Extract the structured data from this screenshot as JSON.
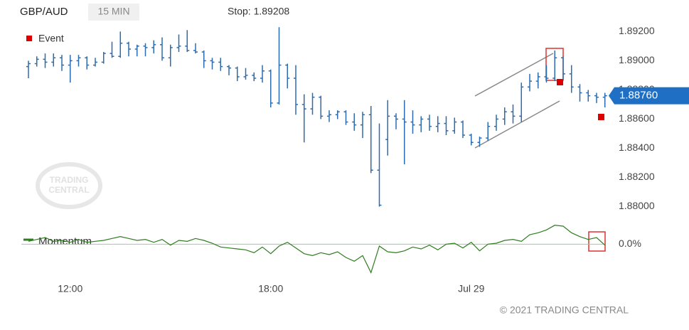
{
  "header": {
    "symbol": "GBP/AUD",
    "interval": "15 MIN",
    "stop": "Stop: 1.89208"
  },
  "watermark": [
    "TRADING",
    "CENTRAL"
  ],
  "footer": "© 2021 TRADING CENTRAL",
  "chart_data": [
    {
      "type": "ohlc",
      "legend": "Event",
      "color": "#2b6cb0",
      "categories": [
        null,
        null,
        null,
        null,
        null,
        "12:00",
        null,
        null,
        null,
        null,
        null,
        null,
        null,
        null,
        null,
        null,
        null,
        null,
        null,
        null,
        null,
        null,
        null,
        null,
        null,
        null,
        null,
        null,
        null,
        "18:00",
        null,
        null,
        null,
        null,
        null,
        null,
        null,
        null,
        null,
        null,
        null,
        null,
        null,
        null,
        null,
        null,
        null,
        null,
        null,
        null,
        null,
        null,
        null,
        "Jul 29",
        null,
        null,
        null,
        null,
        null,
        null,
        null,
        null,
        null,
        null,
        null,
        null,
        null,
        null,
        null,
        null
      ],
      "open": [
        1.8896,
        1.8898,
        1.8901,
        1.8899,
        1.8902,
        1.8897,
        1.89,
        1.8902,
        1.8897,
        1.8899,
        1.8905,
        1.8903,
        1.8912,
        1.8908,
        1.891,
        1.8909,
        1.8911,
        1.8902,
        1.8909,
        1.891,
        1.8907,
        1.8906,
        1.89,
        1.8899,
        1.8896,
        1.8895,
        1.8889,
        1.889,
        1.8888,
        1.8893,
        1.8871,
        1.8897,
        1.8888,
        1.887,
        1.8867,
        1.8875,
        1.8862,
        1.8863,
        1.8865,
        1.8858,
        1.8856,
        1.8863,
        1.8825,
        1.8846,
        1.8862,
        1.886,
        1.8858,
        1.8856,
        1.886,
        1.8855,
        1.8857,
        1.8852,
        1.8858,
        1.8849,
        1.8844,
        1.8847,
        1.8855,
        1.886,
        1.8865,
        1.8862,
        1.8882,
        1.8886,
        1.8889,
        1.8888,
        1.8902,
        1.8891,
        1.8882,
        1.8878,
        1.8876,
        1.8875
      ],
      "high": [
        1.89,
        1.8903,
        1.8905,
        1.8905,
        1.8904,
        1.8904,
        1.8904,
        1.8903,
        1.8902,
        1.8906,
        1.8913,
        1.892,
        1.8913,
        1.8911,
        1.8912,
        1.8914,
        1.8916,
        1.8911,
        1.8918,
        1.8921,
        1.8912,
        1.8907,
        1.8902,
        1.8902,
        1.8897,
        1.8896,
        1.8895,
        1.8892,
        1.8897,
        1.8894,
        1.8923,
        1.8898,
        1.8897,
        1.8877,
        1.8878,
        1.8876,
        1.8866,
        1.8866,
        1.8866,
        1.8864,
        1.8865,
        1.8869,
        1.8857,
        1.8873,
        1.8864,
        1.8873,
        1.8866,
        1.8862,
        1.8863,
        1.8862,
        1.8862,
        1.8861,
        1.8859,
        1.885,
        1.8848,
        1.8858,
        1.8863,
        1.8868,
        1.887,
        1.8885,
        1.8891,
        1.8892,
        1.8897,
        1.8907,
        1.8903,
        1.8897,
        1.8884,
        1.888,
        1.8878,
        1.8878
      ],
      "low": [
        1.8888,
        1.8896,
        1.8895,
        1.8896,
        1.8893,
        1.8885,
        1.8896,
        1.8894,
        1.8896,
        1.8898,
        1.8902,
        1.8902,
        1.8903,
        1.8903,
        1.8903,
        1.8905,
        1.89,
        1.8896,
        1.8906,
        1.8906,
        1.8905,
        1.8895,
        1.8894,
        1.8893,
        1.889,
        1.8886,
        1.8887,
        1.8886,
        1.8885,
        1.8868,
        1.887,
        1.8881,
        1.8863,
        1.8844,
        1.8863,
        1.886,
        1.8858,
        1.886,
        1.8856,
        1.8852,
        1.8847,
        1.8823,
        1.88,
        1.8835,
        1.8853,
        1.8829,
        1.885,
        1.8851,
        1.8852,
        1.8851,
        1.8849,
        1.885,
        1.8847,
        1.8842,
        1.8841,
        1.8845,
        1.8852,
        1.8856,
        1.8857,
        1.8858,
        1.8879,
        1.8881,
        1.8885,
        1.8886,
        1.8887,
        1.8878,
        1.8872,
        1.8872,
        1.8871,
        1.8868
      ],
      "close": [
        1.8898,
        1.8901,
        1.8899,
        1.8902,
        1.8897,
        1.89,
        1.8902,
        1.8897,
        1.8899,
        1.8905,
        1.8903,
        1.8912,
        1.8908,
        1.891,
        1.8909,
        1.8911,
        1.8902,
        1.8909,
        1.891,
        1.8907,
        1.8906,
        1.89,
        1.8899,
        1.8896,
        1.8895,
        1.8889,
        1.889,
        1.8888,
        1.8893,
        1.8871,
        1.8897,
        1.8888,
        1.887,
        1.8867,
        1.8875,
        1.8862,
        1.8863,
        1.8865,
        1.8858,
        1.8856,
        1.8863,
        1.8825,
        1.8801,
        1.8862,
        1.886,
        1.8858,
        1.8856,
        1.886,
        1.8855,
        1.8857,
        1.8852,
        1.8858,
        1.8849,
        1.8844,
        1.8847,
        1.8855,
        1.886,
        1.8865,
        1.8862,
        1.8882,
        1.8886,
        1.8889,
        1.8888,
        1.8902,
        1.8891,
        1.8882,
        1.8878,
        1.8876,
        1.8875,
        1.8876
      ],
      "ylim": [
        1.8791,
        1.8927
      ],
      "yticks": [
        {
          "value": 1.88,
          "label": "1.88000"
        },
        {
          "value": 1.882,
          "label": "1.88200"
        },
        {
          "value": 1.884,
          "label": "1.88400"
        },
        {
          "value": 1.886,
          "label": "1.88600"
        },
        {
          "value": 1.888,
          "label": "1.88800"
        },
        {
          "value": 1.89,
          "label": "1.89000"
        },
        {
          "value": 1.892,
          "label": "1.89200"
        }
      ],
      "last_price": {
        "value": 1.8876,
        "label": "1.88760"
      }
    },
    {
      "type": "line",
      "series": [
        {
          "name": "Momentum",
          "color": "#2e7d1e",
          "values": [
            0.03,
            0.05,
            0.07,
            0.03,
            0.04,
            0.02,
            0.05,
            0.02,
            0.03,
            0.04,
            0.06,
            0.08,
            0.06,
            0.04,
            0.05,
            0.02,
            0.05,
            -0.01,
            0.04,
            0.03,
            0.06,
            0.04,
            0.01,
            -0.03,
            -0.04,
            -0.05,
            -0.06,
            -0.09,
            -0.03,
            -0.1,
            -0.02,
            0.02,
            -0.04,
            -0.1,
            -0.12,
            -0.09,
            -0.11,
            -0.08,
            -0.14,
            -0.18,
            -0.12,
            -0.3,
            -0.02,
            -0.08,
            -0.09,
            -0.07,
            -0.03,
            -0.05,
            -0.01,
            -0.06,
            0.0,
            0.01,
            -0.04,
            0.02,
            -0.07,
            0.0,
            0.01,
            0.04,
            0.05,
            0.03,
            0.1,
            0.12,
            0.15,
            0.2,
            0.19,
            0.12,
            0.08,
            0.05,
            0.07,
            -0.01
          ]
        }
      ],
      "ylim": [
        -0.35,
        0.25
      ],
      "yticks": [
        {
          "value": 0,
          "label": "0.0%"
        }
      ]
    }
  ]
}
